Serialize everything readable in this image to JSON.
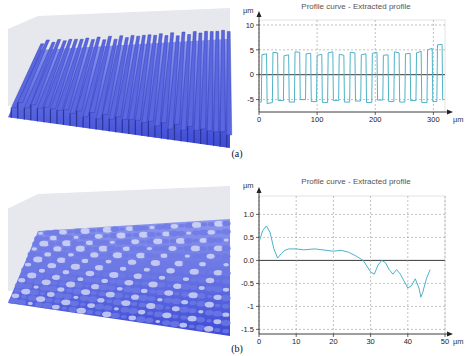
{
  "chart_data": [
    {
      "type": "line",
      "title": "Profile curve - Extracted profile",
      "y_label": "µm",
      "x_label": "µm",
      "caption": "(a)",
      "x": [
        0,
        4,
        5,
        13,
        14,
        23,
        24,
        32,
        33,
        42,
        43,
        51,
        52,
        61,
        62,
        70,
        71,
        80,
        81,
        89,
        90,
        99,
        100,
        108,
        109,
        118,
        119,
        127,
        128,
        137,
        138,
        146,
        147,
        156,
        157,
        165,
        166,
        175,
        176,
        184,
        185,
        194,
        195,
        203,
        204,
        213,
        214,
        222,
        223,
        232,
        233,
        241,
        242,
        251,
        252,
        260,
        261,
        270,
        271,
        279,
        280,
        289,
        290,
        298,
        299,
        306,
        307,
        315,
        316,
        318
      ],
      "values": [
        -5.5,
        -5.5,
        4.0,
        4.2,
        -5.8,
        -5.6,
        4.5,
        4.4,
        -5.2,
        -5.2,
        3.8,
        4.0,
        -5.5,
        -5.5,
        4.6,
        4.5,
        -5.0,
        -5.0,
        4.2,
        4.3,
        -5.4,
        -5.4,
        3.9,
        4.1,
        -5.6,
        -5.6,
        4.4,
        4.6,
        -5.2,
        -5.2,
        4.1,
        3.9,
        -5.5,
        -5.5,
        4.5,
        4.4,
        -5.3,
        -5.3,
        4.0,
        4.2,
        -5.6,
        -5.6,
        4.3,
        4.5,
        -5.1,
        -5.1,
        3.9,
        4.0,
        -5.4,
        -5.4,
        4.6,
        4.4,
        -5.5,
        -5.5,
        4.2,
        4.3,
        -5.2,
        -5.2,
        4.4,
        4.7,
        -5.6,
        -5.6,
        5.0,
        5.3,
        -5.4,
        -5.4,
        6.0,
        6.1,
        -5.0,
        -5.0
      ],
      "color": "#4fb3c8",
      "xlim": [
        0,
        320
      ],
      "ylim": [
        -7.5,
        11
      ],
      "xticks": [
        0,
        100,
        200,
        300
      ],
      "yticks": [
        -5,
        0,
        5,
        10
      ],
      "grid": true
    },
    {
      "type": "line",
      "title": "Profile curve - Extracted profile",
      "y_label": "µm",
      "x_label": "µm",
      "caption": "(b)",
      "x": [
        0,
        1,
        2,
        3,
        4,
        5,
        6,
        7,
        8,
        10,
        12,
        15,
        18,
        20,
        22,
        24,
        26,
        28,
        30,
        31,
        32,
        33,
        34,
        35,
        36,
        37,
        38,
        39,
        40,
        41,
        42,
        43,
        43.5,
        44,
        45,
        46
      ],
      "values": [
        0.4,
        0.65,
        0.75,
        0.6,
        0.25,
        0.05,
        0.15,
        0.22,
        0.25,
        0.25,
        0.23,
        0.25,
        0.22,
        0.2,
        0.22,
        0.18,
        0.1,
        0.0,
        -0.25,
        -0.3,
        -0.1,
        0.0,
        -0.05,
        -0.2,
        -0.3,
        -0.2,
        -0.3,
        -0.45,
        -0.6,
        -0.55,
        -0.4,
        -0.6,
        -0.8,
        -0.7,
        -0.4,
        -0.2
      ],
      "color": "#4fb3c8",
      "xlim": [
        0,
        50
      ],
      "ylim": [
        -1.6,
        1.4
      ],
      "xticks": [
        0,
        10,
        20,
        30,
        40,
        50
      ],
      "yticks": [
        -1.5,
        -1,
        -0.5,
        {
          "value": 0,
          "label": "0.0"
        },
        0.5,
        {
          "value": 1,
          "label": "1.0"
        }
      ],
      "grid": true
    }
  ]
}
